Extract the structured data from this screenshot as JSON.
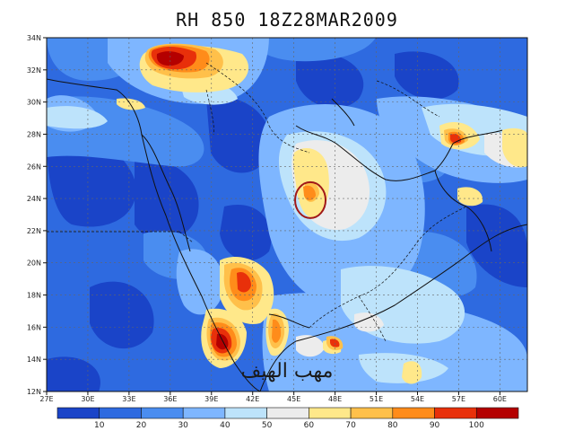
{
  "title": "RH 850 18Z28MAR2009",
  "lat_labels": [
    "34N",
    "32N",
    "30N",
    "28N",
    "26N",
    "24N",
    "22N",
    "20N",
    "18N",
    "16N",
    "14N",
    "12N"
  ],
  "lon_labels": [
    "27E",
    "30E",
    "33E",
    "36E",
    "39E",
    "42E",
    "45E",
    "48E",
    "51E",
    "54E",
    "57E",
    "60E"
  ],
  "colorbar": {
    "colors": [
      "#1a44c8",
      "#2e6ae0",
      "#4a8df0",
      "#7eb6ff",
      "#bde3fb",
      "#ececec",
      "#ffe88a",
      "#ffc04a",
      "#ff8c1a",
      "#e8300a",
      "#b40000"
    ],
    "labels": [
      "10",
      "20",
      "30",
      "40",
      "50",
      "60",
      "70",
      "80",
      "90",
      "100"
    ]
  },
  "watermark": "مهب الهيف",
  "highlight": {
    "lon": 46.2,
    "lat": 23.9,
    "color": "#a01818"
  }
}
